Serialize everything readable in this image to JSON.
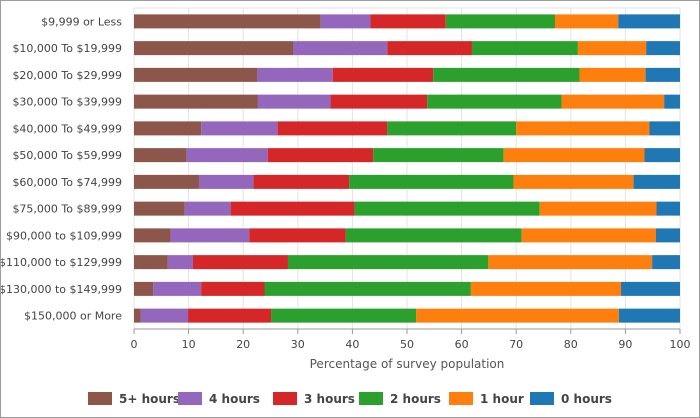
{
  "chart_data": {
    "type": "bar",
    "orientation": "horizontal",
    "stacked": true,
    "categories": [
      "$9,999 or Less",
      "$10,000 To $19,999",
      "$20,000 To $29,999",
      "$30,000 To $39,999",
      "$40,000 To $49,999",
      "$50,000 To $59,999",
      "$60,000 To $74,999",
      "$75,000 To $89,999",
      "$90,000 to $109,999",
      "$110,000 to $129,999",
      "$130,000 to $149,999",
      "$150,000 or More"
    ],
    "series": [
      {
        "name": "5+ hours",
        "color": "#8c564b",
        "values": [
          34.2,
          29.2,
          22.6,
          22.7,
          12.3,
          9.6,
          11.9,
          9.3,
          6.7,
          6.2,
          3.5,
          1.2
        ]
      },
      {
        "name": "4 hours",
        "color": "#9467bd",
        "values": [
          9.1,
          17.2,
          13.8,
          13.3,
          14.0,
          14.9,
          10.0,
          8.4,
          14.4,
          4.6,
          8.8,
          8.7
        ]
      },
      {
        "name": "3 hours",
        "color": "#d62728",
        "values": [
          13.8,
          15.5,
          18.4,
          17.7,
          20.1,
          19.3,
          17.5,
          22.7,
          17.7,
          17.4,
          11.6,
          15.2
        ]
      },
      {
        "name": "2 hours",
        "color": "#2ca02c",
        "values": [
          20.0,
          19.4,
          26.8,
          24.6,
          23.6,
          23.9,
          30.1,
          33.9,
          32.2,
          36.7,
          37.8,
          26.6
        ]
      },
      {
        "name": "1 hour",
        "color": "#ff7f0e",
        "values": [
          11.6,
          12.5,
          12.1,
          18.8,
          24.4,
          25.8,
          22.0,
          21.4,
          24.6,
          30.0,
          27.5,
          37.1
        ]
      },
      {
        "name": "0 hours",
        "color": "#1f77b4",
        "values": [
          11.3,
          6.2,
          6.3,
          2.9,
          5.6,
          6.5,
          8.5,
          4.3,
          4.4,
          5.1,
          10.8,
          11.2
        ]
      }
    ],
    "xlabel": "Percentage of survey population",
    "ylabel": "",
    "xlim": [
      0,
      100
    ],
    "xticks": [
      "0",
      "10",
      "20",
      "30",
      "40",
      "50",
      "60",
      "70",
      "80",
      "90",
      "100"
    ],
    "grid": "vertical",
    "legend_position": "bottom"
  }
}
